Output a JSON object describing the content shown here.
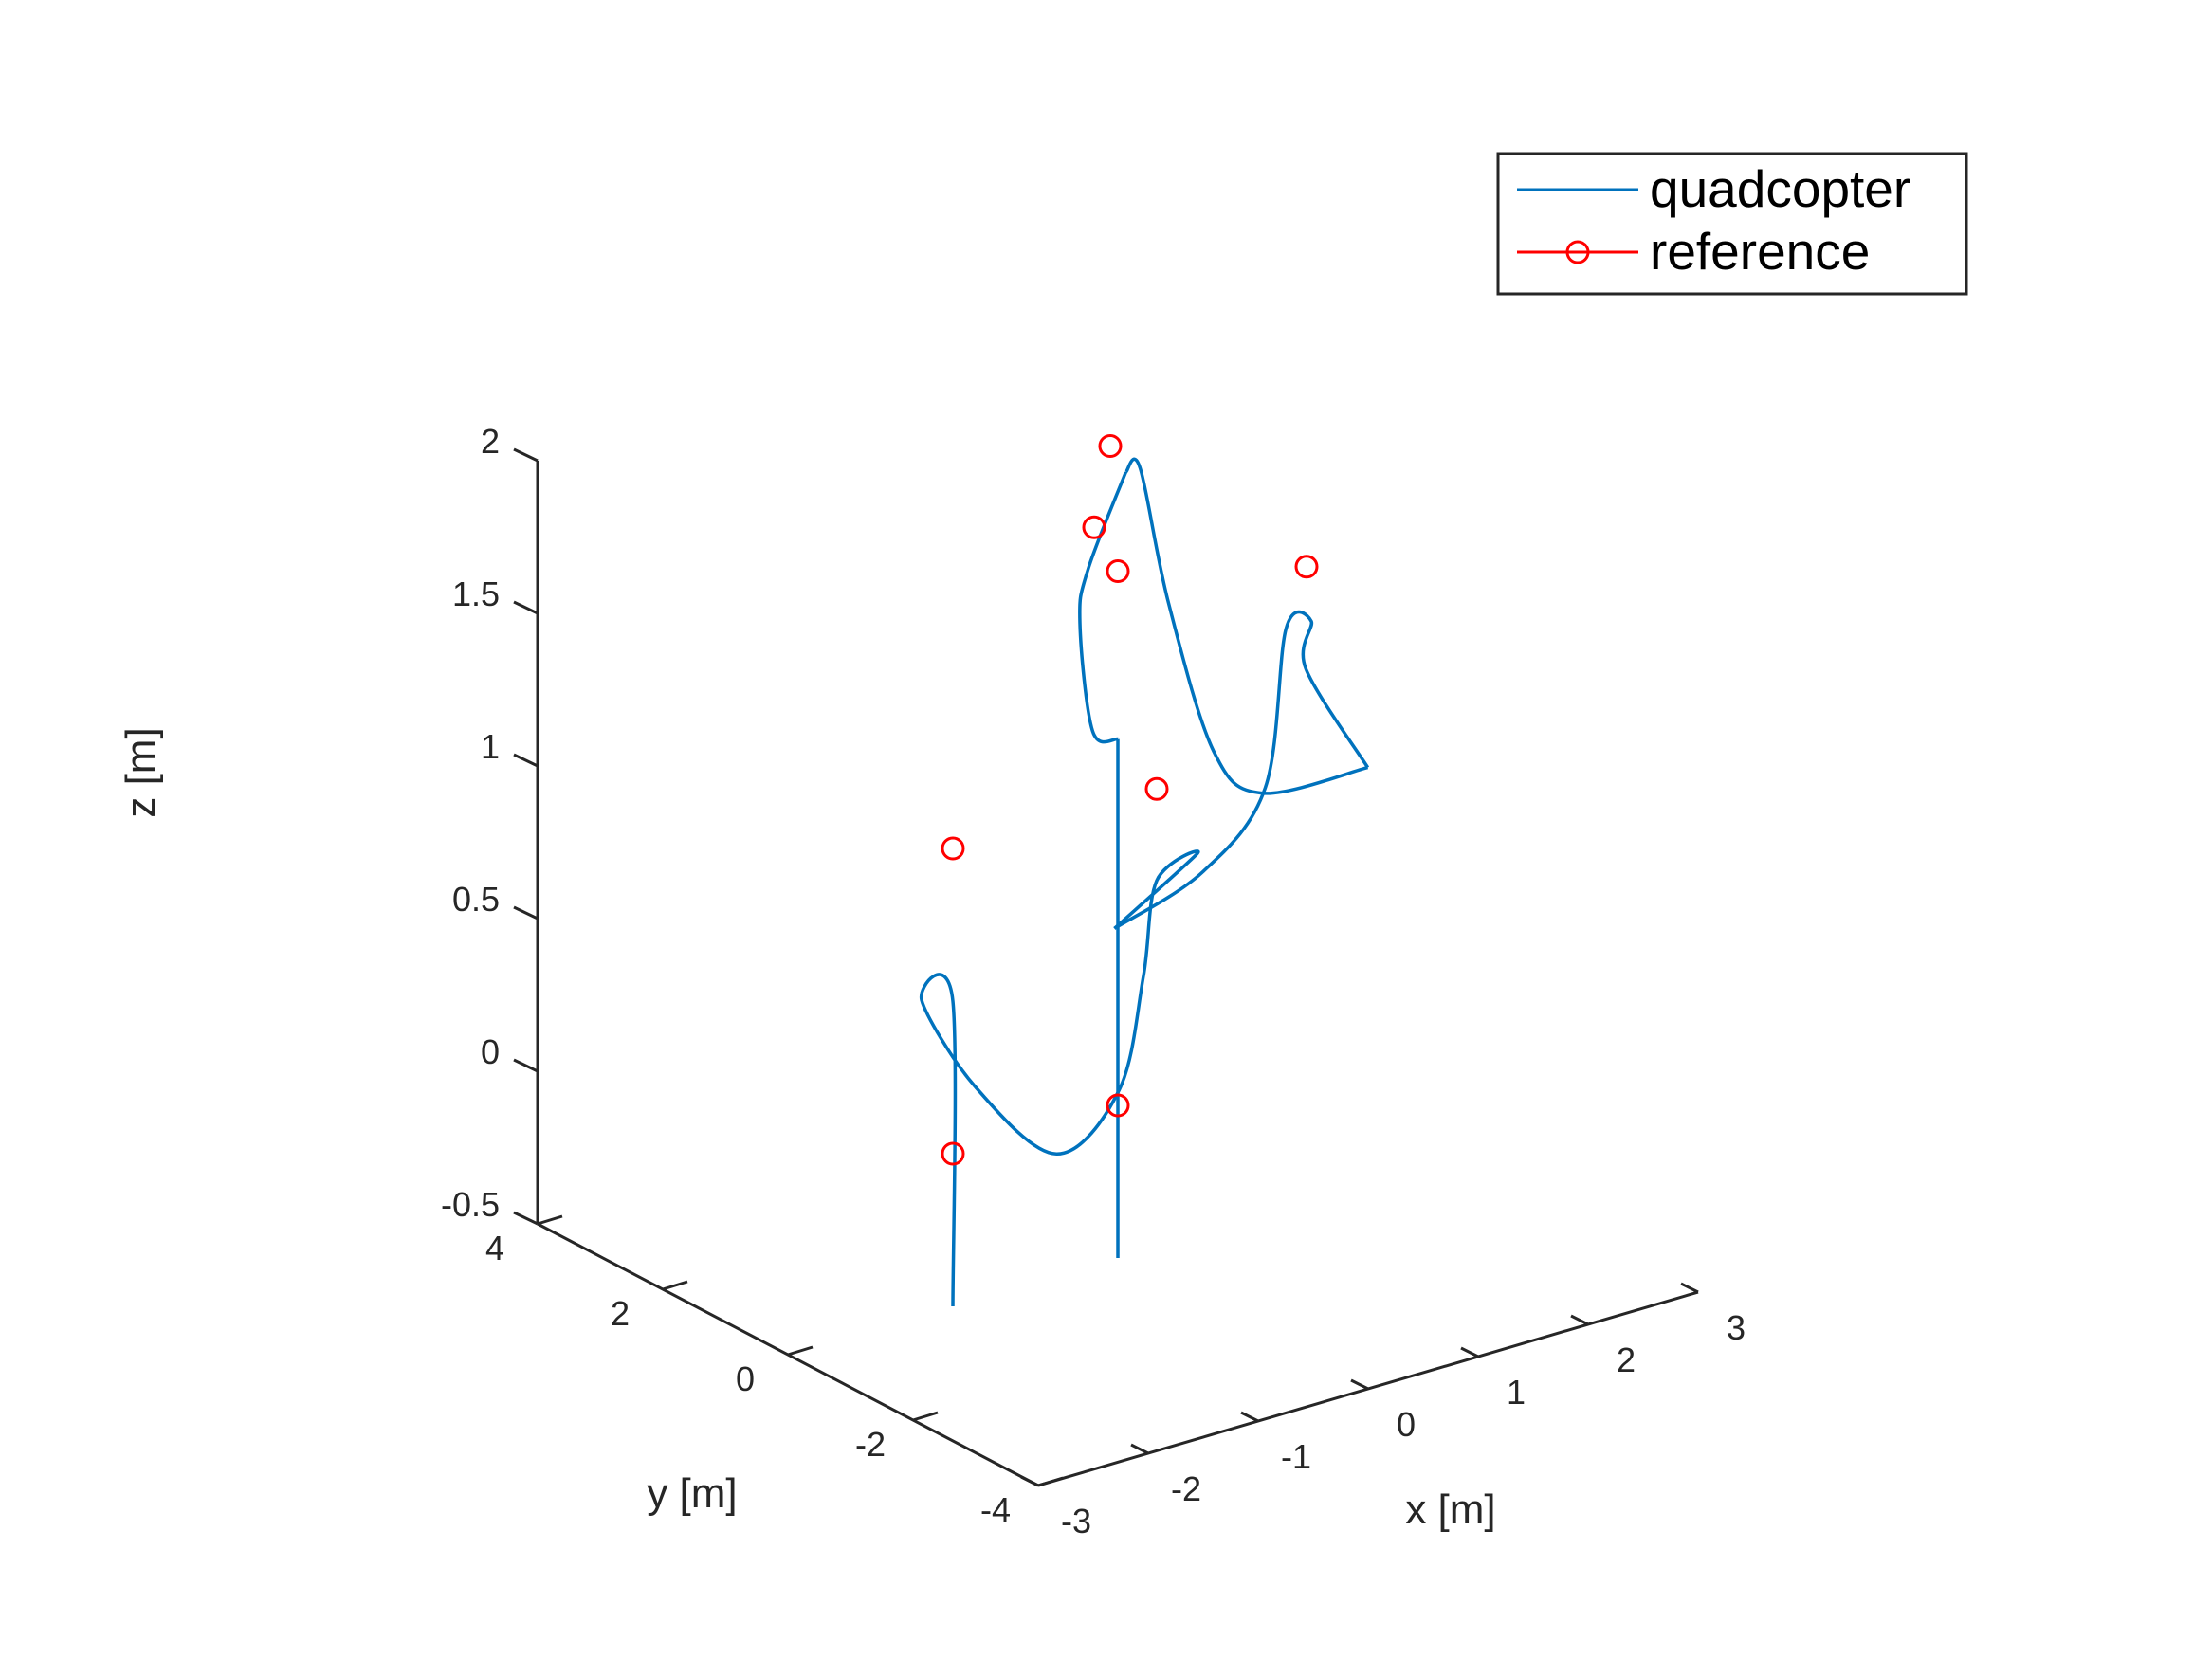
{
  "chart_data": {
    "type": "line3d",
    "xlabel": "x [m]",
    "ylabel": "y [m]",
    "zlabel": "z [m]",
    "xlim": [
      -3,
      3
    ],
    "ylim": [
      -4,
      4
    ],
    "zlim": [
      -0.5,
      2
    ],
    "xticks": [
      -3,
      -2,
      -1,
      0,
      1,
      2,
      3
    ],
    "yticks": [
      -4,
      -2,
      0,
      2,
      4
    ],
    "zticks": [
      -0.5,
      0,
      0.5,
      1,
      1.5,
      2
    ],
    "xtick_labels": [
      "-3",
      "-2",
      "-1",
      "0",
      "1",
      "2",
      "3"
    ],
    "ytick_labels": [
      "-4",
      "-2",
      "0",
      "2",
      "4"
    ],
    "ztick_labels": [
      "-0.5",
      "0",
      "0.5",
      "1",
      "1.5",
      "2"
    ],
    "grid": false,
    "legend_position": "top-right",
    "series": [
      {
        "name": "quadcopter",
        "style": "line",
        "color": "#0072BD",
        "segments": [
          [
            [
              -1.5,
              0,
              -0.5
            ],
            [
              -1.5,
              0,
              0.5
            ],
            [
              -1.5,
              0.5,
              0.45
            ],
            [
              -1.3,
              0.0,
              0.2
            ],
            [
              -0.9,
              -0.6,
              0.0
            ],
            [
              -0.5,
              -0.9,
              0.2
            ],
            [
              -0.45,
              -1.2,
              0.6
            ],
            [
              -0.5,
              -1.5,
              0.95
            ],
            [
              -0.3,
              -1.8,
              1.05
            ],
            [
              -0.6,
              -1.0,
              0.75
            ]
          ],
          [
            [
              -0.6,
              -1.0,
              0.75
            ],
            [
              0.2,
              -1.0,
              0.85
            ],
            [
              1.0,
              -0.6,
              1.0
            ],
            [
              1.7,
              0.3,
              1.35
            ],
            [
              2.1,
              0.6,
              1.3
            ],
            [
              2.05,
              0.6,
              1.15
            ],
            [
              2.5,
              0.4,
              0.8
            ]
          ],
          [
            [
              2.5,
              0.4,
              0.8
            ],
            [
              1.6,
              0.5,
              0.8
            ],
            [
              1.1,
              0.4,
              1.0
            ],
            [
              0.8,
              0.6,
              1.5
            ],
            [
              0.6,
              0.7,
              1.95
            ],
            [
              0.3,
              0.4,
              2.0
            ]
          ],
          [
            [
              0.3,
              0.4,
              2.0
            ],
            [
              -0.5,
              -0.4,
              1.85
            ],
            [
              -0.8,
              -0.8,
              1.75
            ],
            [
              -0.4,
              -0.3,
              1.3
            ],
            [
              0,
              0,
              1.2
            ]
          ],
          [
            [
              0,
              0,
              1.2
            ],
            [
              0,
              0,
              -0.5
            ]
          ]
        ]
      },
      {
        "name": "reference",
        "style": "markers",
        "marker": "circle",
        "color": "#FF0000",
        "points": [
          [
            -1.5,
            0,
            0
          ],
          [
            -1.5,
            0,
            1
          ],
          [
            -0.5,
            -1.5,
            1.25
          ],
          [
            -0.5,
            -0.5,
            2
          ],
          [
            0.5,
            1.0,
            2
          ],
          [
            2,
            0.5,
            1.5
          ],
          [
            0,
            0,
            1.75
          ],
          [
            0,
            0,
            0
          ]
        ]
      }
    ]
  }
}
